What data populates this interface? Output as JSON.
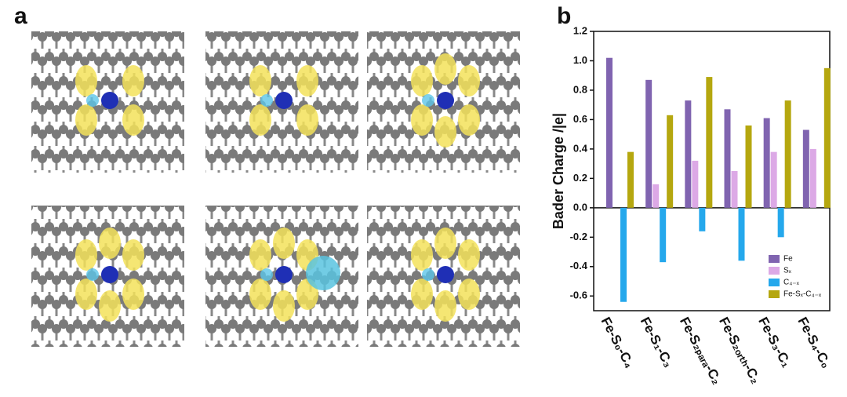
{
  "panel_labels": [
    "a",
    "b"
  ],
  "chart_data": {
    "type": "bar",
    "y_label": "Bader Charge /|e|",
    "categories": [
      "Fe-S₀-C₄",
      "Fe-S₁-C₃",
      "Fe-S₂ₚₐᵣₐ-C₂",
      "Fe-S₂ₒᵣₜₕ-C₂",
      "Fe-S₃-C₁",
      "Fe-S₄-C₀"
    ],
    "series": [
      {
        "name": "Fe",
        "color": "#8064b0",
        "values": [
          1.02,
          0.87,
          0.73,
          0.67,
          0.61,
          0.53
        ]
      },
      {
        "name": "Sₓ",
        "color": "#dca9e6",
        "values": [
          null,
          0.16,
          0.32,
          0.25,
          0.38,
          0.4
        ]
      },
      {
        "name": "C₄₋ₓ",
        "color": "#25a8ec",
        "values": [
          -0.64,
          -0.37,
          -0.16,
          -0.36,
          -0.2,
          null
        ]
      },
      {
        "name": "Fe-Sₓ-C₄₋ₓ",
        "color": "#b5a70f",
        "values": [
          0.38,
          0.63,
          0.89,
          0.56,
          0.73,
          0.95
        ]
      }
    ],
    "ylim": [
      -0.7,
      1.2
    ],
    "yticks": [
      -0.6,
      -0.4,
      -0.2,
      {
        "value": 0,
        "label": "0.0"
      },
      0.2,
      0.4,
      0.6,
      0.8,
      {
        "value": 1,
        "label": "1.0"
      },
      1.2
    ],
    "legend": "lower right"
  }
}
